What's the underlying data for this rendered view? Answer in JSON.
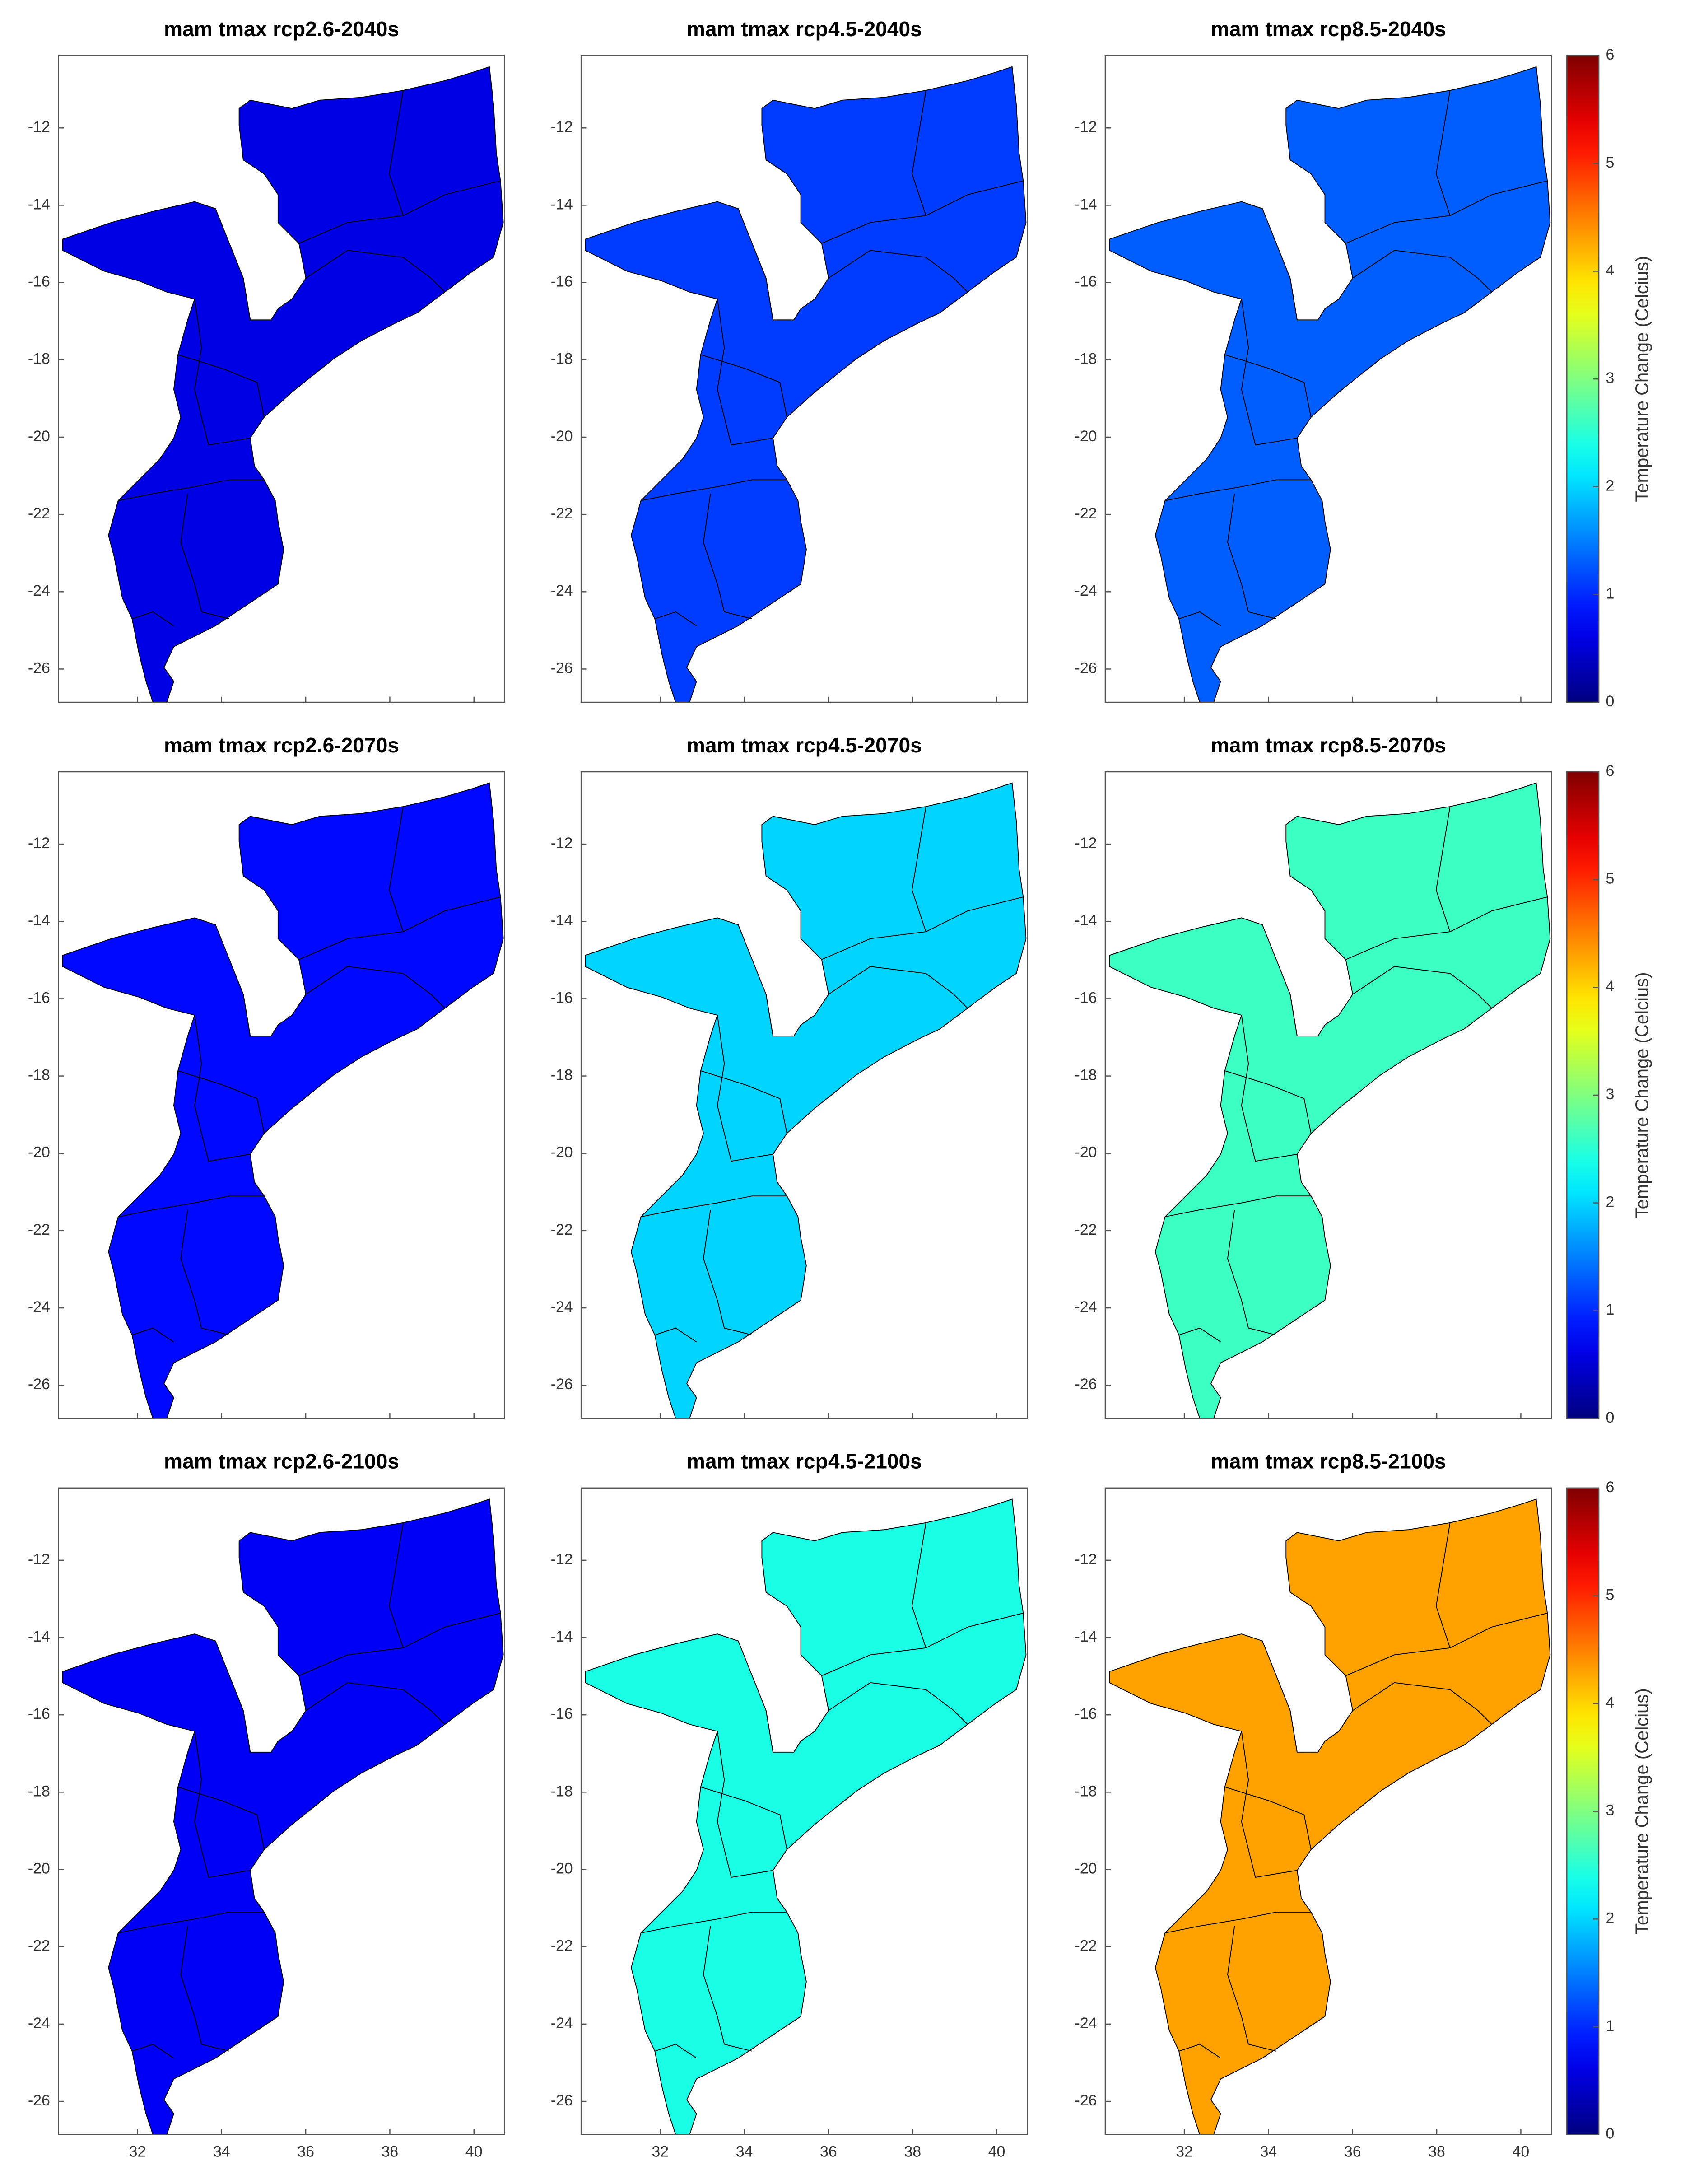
{
  "maps": {
    "xlim": [
      30.12,
      40.73
    ],
    "ylim": [
      -26.86,
      -10.13
    ],
    "xticks": [
      32,
      34,
      36,
      38,
      40
    ],
    "yticks": [
      -12,
      -14,
      -16,
      -18,
      -20,
      -22,
      -24,
      -26
    ],
    "colorbar": {
      "label": "Temperature Change (Celcius)",
      "lim": [
        0,
        6
      ],
      "ticks": [
        0,
        1,
        2,
        3,
        4,
        5,
        6
      ]
    },
    "panels": [
      {
        "title": "mam tmax rcp2.6-2040s",
        "value": 0.6
      },
      {
        "title": "mam tmax rcp4.5-2040s",
        "value": 1.1
      },
      {
        "title": "mam tmax rcp8.5-2040s",
        "value": 1.3
      },
      {
        "title": "mam tmax rcp2.6-2070s",
        "value": 0.8
      },
      {
        "title": "mam tmax rcp4.5-2070s",
        "value": 2.0
      },
      {
        "title": "mam tmax rcp8.5-2070s",
        "value": 2.6
      },
      {
        "title": "mam tmax rcp2.6-2100s",
        "value": 0.7
      },
      {
        "title": "mam tmax rcp4.5-2100s",
        "value": 2.4
      },
      {
        "title": "mam tmax rcp8.5-2100s",
        "value": 4.3
      }
    ]
  }
}
